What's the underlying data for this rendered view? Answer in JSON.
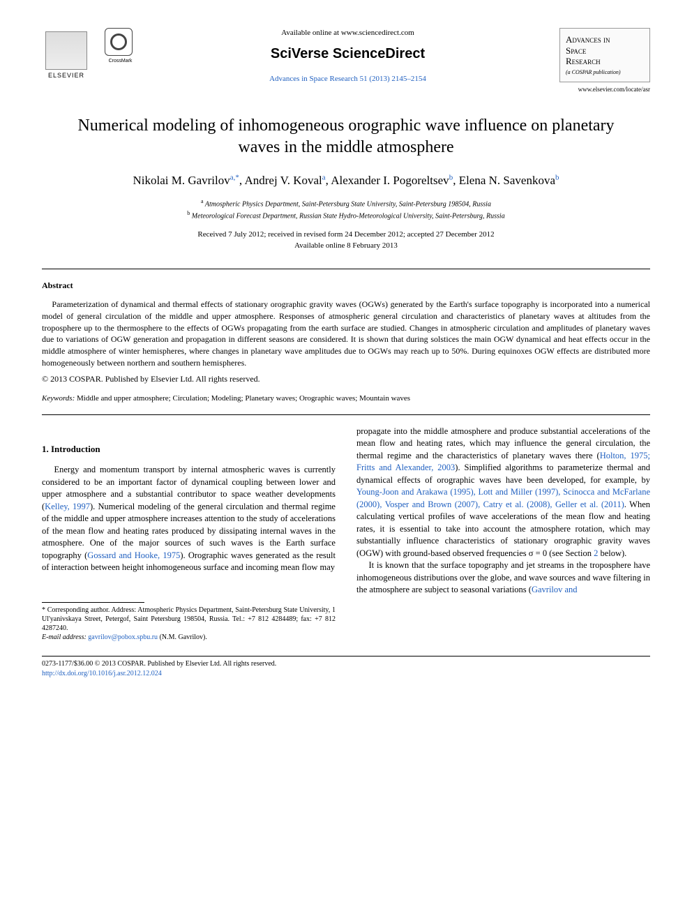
{
  "header": {
    "elsevier_label": "ELSEVIER",
    "crossmark_label": "CrossMark",
    "available_online": "Available online at www.sciencedirect.com",
    "sciverse": "SciVerse ScienceDirect",
    "journal_ref": "Advances in Space Research 51 (2013) 2145–2154",
    "journal_brand_line1": "Advances in",
    "journal_brand_line2": "Space",
    "journal_brand_line3": "Research",
    "cospar_sub": "(a COSPAR publication)",
    "journal_url": "www.elsevier.com/locate/asr"
  },
  "title": "Numerical modeling of inhomogeneous orographic wave influence on planetary waves in the middle atmosphere",
  "authors": [
    {
      "name": "Nikolai M. Gavrilov",
      "aff": "a,",
      "corr": "*"
    },
    {
      "name": "Andrej V. Koval",
      "aff": "a",
      "corr": ""
    },
    {
      "name": "Alexander I. Pogoreltsev",
      "aff": "b",
      "corr": ""
    },
    {
      "name": "Elena N. Savenkova",
      "aff": "b",
      "corr": ""
    }
  ],
  "affiliations": {
    "a": "Atmospheric Physics Department, Saint-Petersburg State University, Saint-Petersburg 198504, Russia",
    "b": "Meteorological Forecast Department, Russian State Hydro-Meteorological University, Saint-Petersburg, Russia"
  },
  "dates": {
    "line1": "Received 7 July 2012; received in revised form 24 December 2012; accepted 27 December 2012",
    "line2": "Available online 8 February 2013"
  },
  "abstract": {
    "heading": "Abstract",
    "body": "Parameterization of dynamical and thermal effects of stationary orographic gravity waves (OGWs) generated by the Earth's surface topography is incorporated into a numerical model of general circulation of the middle and upper atmosphere. Responses of atmospheric general circulation and characteristics of planetary waves at altitudes from the troposphere up to the thermosphere to the effects of OGWs propagating from the earth surface are studied. Changes in atmospheric circulation and amplitudes of planetary waves due to variations of OGW generation and propagation in different seasons are considered. It is shown that during solstices the main OGW dynamical and heat effects occur in the middle atmosphere of winter hemispheres, where changes in planetary wave amplitudes due to OGWs may reach up to 50%. During equinoxes OGW effects are distributed more homogeneously between northern and southern hemispheres.",
    "copyright": "© 2013 COSPAR. Published by Elsevier Ltd. All rights reserved."
  },
  "keywords": {
    "label": "Keywords:",
    "text": "Middle and upper atmosphere; Circulation; Modeling; Planetary waves; Orographic waves; Mountain waves"
  },
  "section1": {
    "heading": "1. Introduction",
    "col1_p1a": "Energy and momentum transport by internal atmospheric waves is currently considered to be an important factor of dynamical coupling between lower and upper atmosphere and a substantial contributor to space weather developments (",
    "col1_ref1": "Kelley, 1997",
    "col1_p1b": "). Numerical modeling of the general circulation and thermal regime of the middle and upper atmosphere increases attention to the study of accelerations of the mean flow and heating rates produced by dissipating internal waves in the atmosphere. One of the major sources of such waves is the Earth surface topography (",
    "col1_ref2": "Gossard and Hooke, 1975",
    "col1_p1c": "). Orographic waves generated as the result of interaction between height inhomogeneous surface and incoming mean flow may",
    "col2_p1a": "propagate into the middle atmosphere and produce substantial accelerations of the mean flow and heating rates, which may influence the general circulation, the thermal regime and the characteristics of planetary waves there (",
    "col2_ref1": "Holton, 1975; Fritts and Alexander, 2003",
    "col2_p1b": "). Simplified algorithms to parameterize thermal and dynamical effects of orographic waves have been developed, for example, by ",
    "col2_ref2": "Young-Joon and Arakawa (1995), Lott and Miller (1997), Scinocca and McFarlane (2000), Vosper and Brown (2007), Catry et al. (2008), Geller et al. (2011)",
    "col2_p1c": ". When calculating vertical profiles of wave accelerations of the mean flow and heating rates, it is essential to take into account the atmosphere rotation, which may substantially influence characteristics of stationary orographic gravity waves (OGW) with ground-based observed frequencies σ = 0 (see Section ",
    "col2_ref_sec": "2",
    "col2_p1d": " below).",
    "col2_p2a": "It is known that the surface topography and jet streams in the troposphere have inhomogeneous distributions over the globe, and wave sources and wave filtering in the atmosphere are subject to seasonal variations (",
    "col2_ref3": "Gavrilov and"
  },
  "footnote": {
    "corr_label": "* Corresponding author. Address: Atmospheric Physics Department, Saint-Petersburg State University, 1 Ul'yanivskaya Street, Petergof, Saint Petersburg 198504, Russia. Tel.: +7 812 4284489; fax: +7 812 4287240.",
    "email_label": "E-mail address:",
    "email": "gavrilov@pobox.spbu.ru",
    "email_name": "(N.M. Gavrilov)."
  },
  "footer": {
    "issn": "0273-1177/$36.00 © 2013 COSPAR. Published by Elsevier Ltd. All rights reserved.",
    "doi": "http://dx.doi.org/10.1016/j.asr.2012.12.024"
  },
  "colors": {
    "link": "#2060c0",
    "text": "#000000",
    "background": "#ffffff"
  }
}
